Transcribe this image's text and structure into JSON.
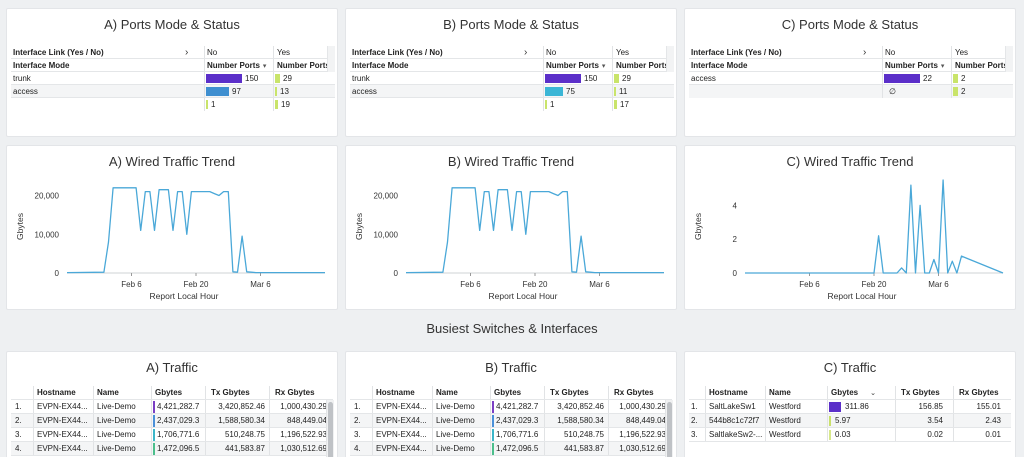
{
  "ports": [
    {
      "title": "A) Ports Mode & Status",
      "link_header": "Interface Link (Yes / No)",
      "mode_header": "Interface Mode",
      "no_label": "No",
      "yes_label": "Yes",
      "number_ports_label": "Number Ports",
      "rows": [
        {
          "mode": "trunk",
          "no": "150",
          "yes": "29",
          "no_frac": 1.0,
          "yes_frac": 1.0
        },
        {
          "mode": "access",
          "no": "97",
          "yes": "13",
          "no_frac": 0.65,
          "yes_frac": 0.45
        },
        {
          "mode": "",
          "no": "1",
          "yes": "19",
          "no_frac": 0.01,
          "yes_frac": 0.66
        }
      ]
    },
    {
      "title": "B) Ports Mode & Status",
      "link_header": "Interface Link (Yes / No)",
      "mode_header": "Interface Mode",
      "no_label": "No",
      "yes_label": "Yes",
      "number_ports_label": "Number Ports",
      "rows": [
        {
          "mode": "trunk",
          "no": "150",
          "yes": "29",
          "no_frac": 1.0,
          "yes_frac": 1.0
        },
        {
          "mode": "access",
          "no": "75",
          "yes": "11",
          "no_frac": 0.5,
          "yes_frac": 0.38
        },
        {
          "mode": "",
          "no": "1",
          "yes": "17",
          "no_frac": 0.01,
          "yes_frac": 0.59
        }
      ]
    },
    {
      "title": "C) Ports Mode & Status",
      "link_header": "Interface Link (Yes / No)",
      "mode_header": "Interface Mode",
      "no_label": "No",
      "yes_label": "Yes",
      "number_ports_label": "Number Ports",
      "rows": [
        {
          "mode": "access",
          "no": "22",
          "yes": "2",
          "no_frac": 1.0,
          "yes_frac": 1.0
        },
        {
          "mode": "",
          "no": "∅",
          "yes": "2",
          "no_frac": 0,
          "yes_frac": 1.0
        }
      ]
    }
  ],
  "charts": [
    {
      "title": "A) Wired Traffic Trend",
      "xlabel": "Report Local Hour",
      "ylabel": "Gbytes"
    },
    {
      "title": "B) Wired Traffic Trend",
      "xlabel": "Report Local Hour",
      "ylabel": "Gbytes"
    },
    {
      "title": "C) Wired Traffic Trend",
      "xlabel": "Report Local Hour",
      "ylabel": "Gbytes"
    }
  ],
  "chart_data": [
    {
      "type": "line",
      "title": "A) Wired Traffic Trend",
      "xlabel": "Report Local Hour",
      "ylabel": "Gbytes",
      "x_ticks": [
        "Feb 6",
        "Feb 20",
        "Mar 6"
      ],
      "y_ticks": [
        0,
        10000,
        20000
      ],
      "y_tick_labels": [
        "0",
        "10,000",
        "20,000"
      ],
      "ylim": [
        0,
        24000
      ],
      "series_color": "#4aa8d8",
      "series": [
        {
          "x": [
            "Jan 23",
            "Jan 31",
            "Feb 1",
            "Feb 2",
            "Feb 3",
            "Feb 7",
            "Feb 8",
            "Feb 9",
            "Feb 10",
            "Feb 11",
            "Feb 12",
            "Feb 14",
            "Feb 15",
            "Feb 16",
            "Feb 17",
            "Feb 18",
            "Feb 19",
            "Feb 20",
            "Feb 21",
            "Feb 22",
            "Feb 23",
            "Feb 24",
            "Feb 25",
            "Feb 26",
            "Feb 27",
            "Feb 28",
            "Mar 1",
            "Mar 2",
            "Mar 3",
            "Mar 4",
            "Mar 5",
            "Mar 6",
            "Mar 7",
            "Mar 8",
            "Mar 9",
            "Mar 10",
            "Mar 11",
            "Mar 12",
            "Mar 13",
            "Mar 14",
            "Mar 15",
            "Mar 16",
            "Mar 17",
            "Mar 18",
            "Mar 19",
            "Mar 20"
          ],
          "y": [
            100,
            200,
            8000,
            22000,
            22000,
            22000,
            11000,
            21000,
            21000,
            11000,
            21500,
            21500,
            11000,
            21000,
            21000,
            10000,
            21000,
            21000,
            21000,
            21000,
            21000,
            20500,
            20000,
            21000,
            21000,
            300,
            200,
            9500,
            300,
            200,
            100,
            100,
            100,
            100,
            100,
            100,
            100,
            100,
            100,
            100,
            100,
            100,
            100,
            100,
            100,
            100
          ]
        }
      ]
    },
    {
      "type": "line",
      "title": "B) Wired Traffic Trend",
      "xlabel": "Report Local Hour",
      "ylabel": "Gbytes",
      "x_ticks": [
        "Feb 6",
        "Feb 20",
        "Mar 6"
      ],
      "y_ticks": [
        0,
        10000,
        20000
      ],
      "y_tick_labels": [
        "0",
        "10,000",
        "20,000"
      ],
      "ylim": [
        0,
        24000
      ],
      "series_color": "#4aa8d8",
      "series": [
        {
          "x": [
            "Jan 23",
            "Jan 31",
            "Feb 1",
            "Feb 2",
            "Feb 3",
            "Feb 7",
            "Feb 8",
            "Feb 9",
            "Feb 10",
            "Feb 11",
            "Feb 12",
            "Feb 14",
            "Feb 15",
            "Feb 16",
            "Feb 17",
            "Feb 18",
            "Feb 19",
            "Feb 20",
            "Feb 21",
            "Feb 22",
            "Feb 23",
            "Feb 24",
            "Feb 25",
            "Feb 26",
            "Feb 27",
            "Feb 28",
            "Mar 1",
            "Mar 2",
            "Mar 3",
            "Mar 4",
            "Mar 5",
            "Mar 6",
            "Mar 7",
            "Mar 8",
            "Mar 9",
            "Mar 10",
            "Mar 11",
            "Mar 12",
            "Mar 13",
            "Mar 14",
            "Mar 15",
            "Mar 16",
            "Mar 17",
            "Mar 18",
            "Mar 19",
            "Mar 20"
          ],
          "y": [
            100,
            200,
            8000,
            22000,
            22000,
            22000,
            11000,
            21000,
            21000,
            11000,
            21500,
            21500,
            11000,
            21000,
            21000,
            10000,
            21000,
            21000,
            21000,
            21000,
            21000,
            20500,
            20000,
            21000,
            21000,
            300,
            200,
            9500,
            300,
            200,
            100,
            100,
            100,
            100,
            100,
            100,
            100,
            100,
            100,
            100,
            100,
            100,
            100,
            100,
            100,
            100
          ]
        }
      ]
    },
    {
      "type": "line",
      "title": "C) Wired Traffic Trend",
      "xlabel": "Report Local Hour",
      "ylabel": "Gbytes",
      "x_ticks": [
        "Feb 6",
        "Feb 20",
        "Mar 6"
      ],
      "y_ticks": [
        0,
        2,
        4
      ],
      "y_tick_labels": [
        "0",
        "2",
        "4"
      ],
      "ylim": [
        0,
        5.5
      ],
      "series_color": "#4aa8d8",
      "series": [
        {
          "x": [
            "Jan 23",
            "Feb 20",
            "Feb 21",
            "Feb 22",
            "Feb 25",
            "Feb 26",
            "Feb 27",
            "Feb 28",
            "Mar 1",
            "Mar 2",
            "Mar 3",
            "Mar 4",
            "Mar 5",
            "Mar 6",
            "Mar 7",
            "Mar 8",
            "Mar 9",
            "Mar 10",
            "Mar 11",
            "Mar 20"
          ],
          "y": [
            0,
            0,
            2.2,
            0,
            0,
            0.3,
            0,
            5.2,
            0,
            4.0,
            0,
            0,
            0.8,
            0,
            5.5,
            0,
            0.7,
            0,
            1.0,
            0
          ]
        }
      ]
    }
  ],
  "section_title": "Busiest Switches & Interfaces",
  "traffic": [
    {
      "title": "A) Traffic",
      "headers": {
        "hostname": "Hostname",
        "name": "Name",
        "gbytes": "Gbytes",
        "tx": "Tx Gbytes",
        "rx": "Rx Gbytes"
      },
      "rows": [
        {
          "idx": "1.",
          "hostname": "EVPN-EX44...",
          "name": "Live-Demo",
          "gbytes": "4,421,282.7",
          "tx": "3,420,852.46",
          "rx": "1,000,430.29",
          "color": "#7b3fc4"
        },
        {
          "idx": "2.",
          "hostname": "EVPN-EX44...",
          "name": "Live-Demo",
          "gbytes": "2,437,029.3",
          "tx": "1,588,580.34",
          "rx": "848,449.04",
          "color": "#4a90d9"
        },
        {
          "idx": "3.",
          "hostname": "EVPN-EX44...",
          "name": "Live-Demo",
          "gbytes": "1,706,771.6",
          "tx": "510,248.75",
          "rx": "1,196,522.93",
          "color": "#3bb6c9"
        },
        {
          "idx": "4.",
          "hostname": "EVPN-EX44...",
          "name": "Live-Demo",
          "gbytes": "1,472,096.5",
          "tx": "441,583.87",
          "rx": "1,030,512.69",
          "color": "#4cbf8c"
        }
      ]
    },
    {
      "title": "B) Traffic",
      "headers": {
        "hostname": "Hostname",
        "name": "Name",
        "gbytes": "Gbytes",
        "tx": "Tx Gbytes",
        "rx": "Rx Gbytes"
      },
      "rows": [
        {
          "idx": "1.",
          "hostname": "EVPN-EX44...",
          "name": "Live-Demo",
          "gbytes": "4,421,282.7",
          "tx": "3,420,852.46",
          "rx": "1,000,430.29",
          "color": "#7b3fc4"
        },
        {
          "idx": "2.",
          "hostname": "EVPN-EX44...",
          "name": "Live-Demo",
          "gbytes": "2,437,029.3",
          "tx": "1,588,580.34",
          "rx": "848,449.04",
          "color": "#4a90d9"
        },
        {
          "idx": "3.",
          "hostname": "EVPN-EX44...",
          "name": "Live-Demo",
          "gbytes": "1,706,771.6",
          "tx": "510,248.75",
          "rx": "1,196,522.93",
          "color": "#3bb6c9"
        },
        {
          "idx": "4.",
          "hostname": "EVPN-EX44...",
          "name": "Live-Demo",
          "gbytes": "1,472,096.5",
          "tx": "441,583.87",
          "rx": "1,030,512.69",
          "color": "#4cbf8c"
        }
      ]
    },
    {
      "title": "C) Traffic",
      "headers": {
        "hostname": "Hostname",
        "name": "Name",
        "gbytes": "Gbytes",
        "tx": "Tx Gbytes",
        "rx": "Rx Gbytes"
      },
      "rows": [
        {
          "idx": "1.",
          "hostname": "SaltLakeSw1",
          "name": "Westford",
          "gbytes": "311.86",
          "tx": "156.85",
          "rx": "155.01",
          "color": "#5b2fc9",
          "frac": 1.0
        },
        {
          "idx": "2.",
          "hostname": "544b8c1c72f7",
          "name": "Westford",
          "gbytes": "5.97",
          "tx": "3.54",
          "rx": "2.43",
          "color": "#c9e06a",
          "frac": 0.02
        },
        {
          "idx": "3.",
          "hostname": "SaltlakeSw2-...",
          "name": "Westford",
          "gbytes": "0.03",
          "tx": "0.02",
          "rx": "0.01",
          "color": "#d7e88a",
          "frac": 0.01
        }
      ]
    }
  ],
  "colors": {
    "purple_bar": "#5b2fc9",
    "blue_bar": "#3f8fd0",
    "teal_bar": "#3bb6d6",
    "yes_bar": "#c9e46a",
    "line": "#4aa8d8"
  }
}
